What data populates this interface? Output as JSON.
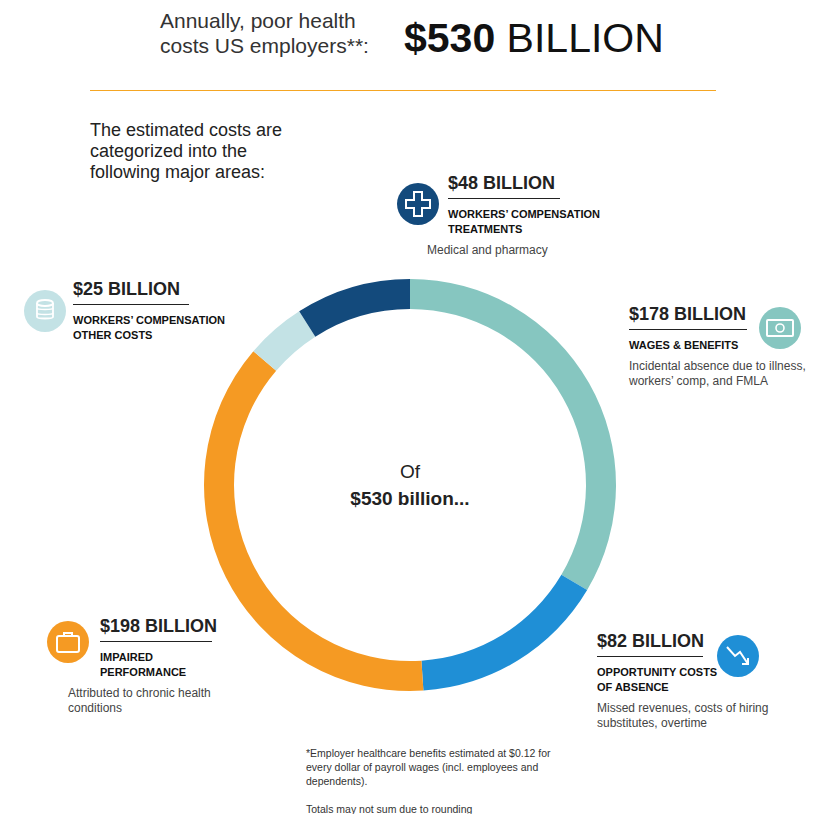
{
  "chart_data": {
    "type": "donut",
    "title": "Annually, poor health costs US employers**:",
    "subtitle": "$530 BILLION",
    "intro": "The estimated costs are categorized into the following major areas:",
    "center_text": [
      "Of",
      "$530 billion..."
    ],
    "categories": [
      "WAGES & BENEFITS",
      "OPPORTUNITY COSTS OF ABSENCE",
      "IMPAIRED PERFORMANCE",
      "WORKERS’ COMPENSATION OTHER COSTS",
      "WORKERS’ COMPENSATION TREATMENTS"
    ],
    "values": [
      178,
      82,
      198,
      25,
      48
    ],
    "value_labels": [
      "$178 BILLION",
      "$82 BILLION",
      "$198 BILLION",
      "$25 BILLION",
      "$48 BILLION"
    ],
    "descriptions": [
      "Incidental absence due to illness, workers’ comp, and FMLA",
      "Missed revenues, costs of hiring substitutes, overtime",
      "Attributed to chronic health conditions",
      null,
      "Medical and pharmacy"
    ],
    "colors": [
      "#86c6c0",
      "#1f8fd6",
      "#f59a23",
      "#c3e2e5",
      "#134a7c"
    ],
    "data_labels": true,
    "footnotes": [
      "*Employer healthcare benefits estimated at $0.12 for every dollar of payroll wages (incl. employees and dependents).",
      "Totals may not sum due to rounding"
    ]
  }
}
